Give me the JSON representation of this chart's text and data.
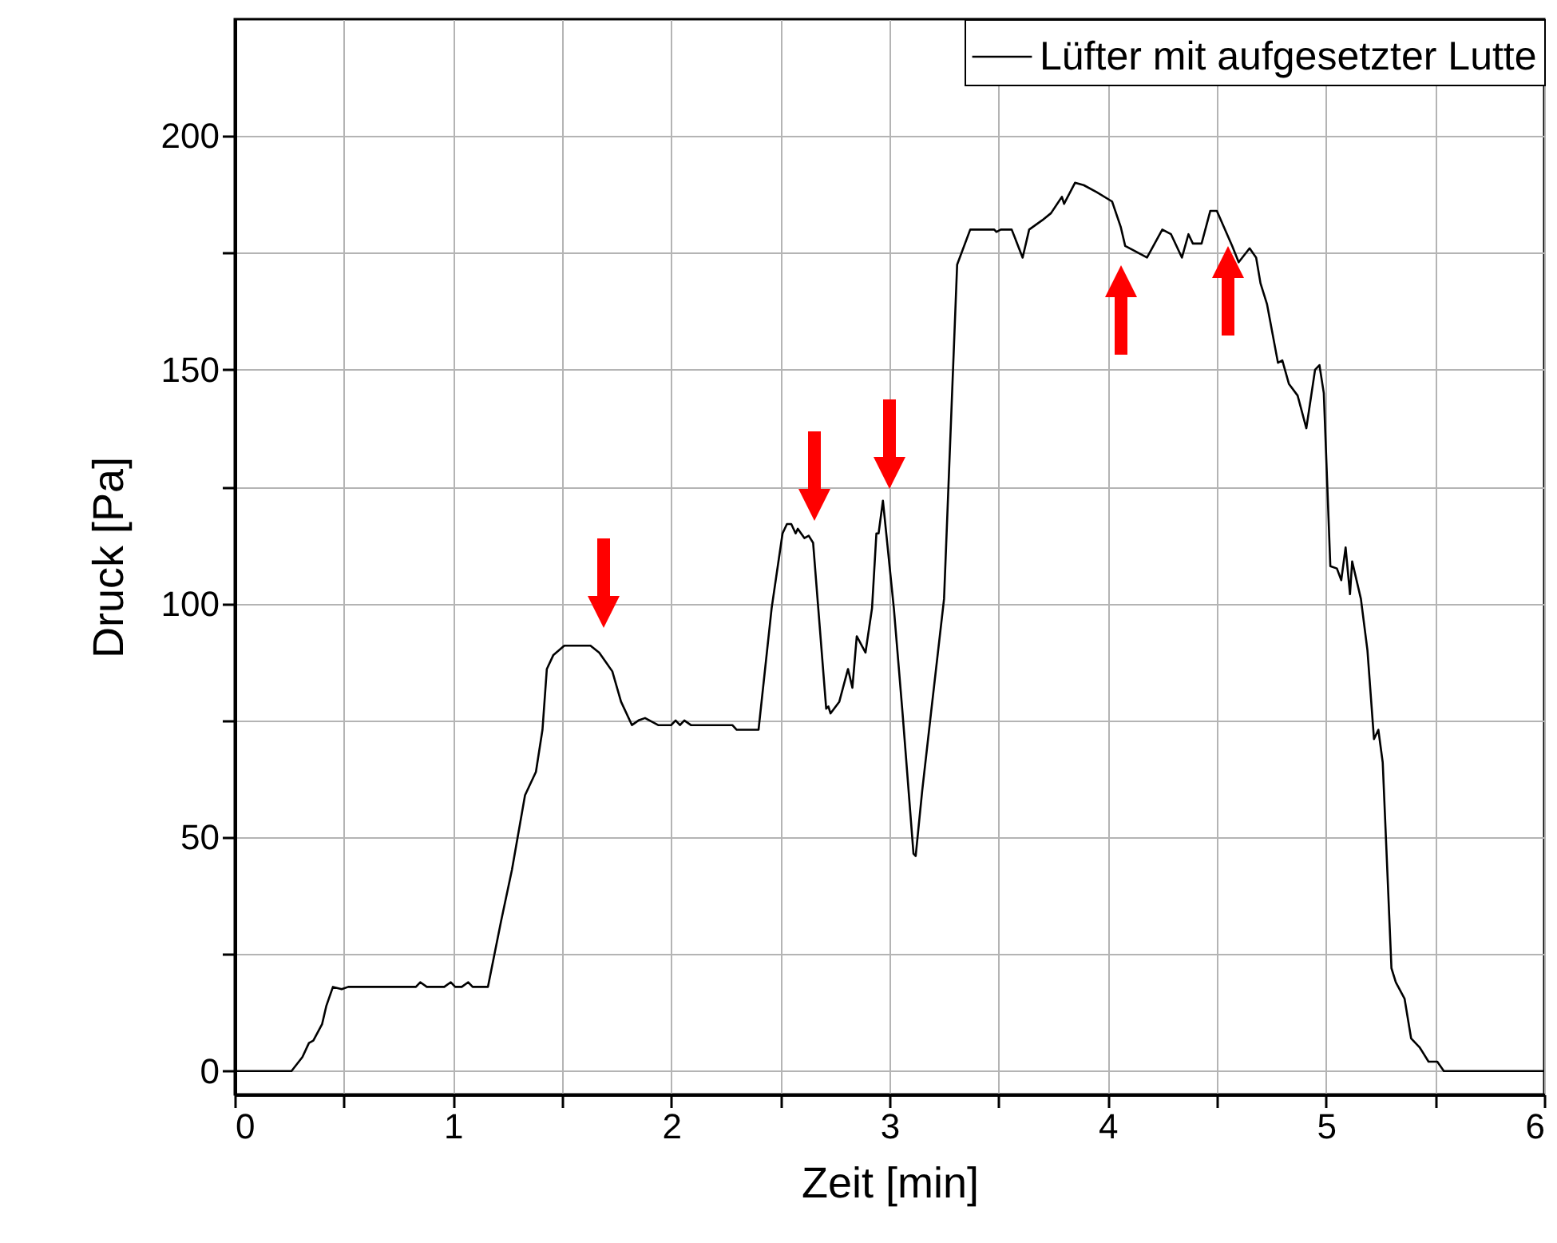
{
  "chart_data": {
    "type": "line",
    "xlabel": "Zeit [min]",
    "ylabel": "Druck [Pa]",
    "xlim": [
      0,
      6
    ],
    "ylim": [
      -5,
      225
    ],
    "xticks": [
      0,
      {
        "value": 0.5,
        "label": null
      },
      1,
      {
        "value": 1.5,
        "label": null
      },
      2,
      {
        "value": 2.5,
        "label": null
      },
      3,
      {
        "value": 3.5,
        "label": null
      },
      4,
      {
        "value": 4.5,
        "label": null
      },
      5,
      {
        "value": 5.5,
        "label": null
      },
      6
    ],
    "yticks": [
      0,
      {
        "value": 25,
        "label": null
      },
      50,
      {
        "value": 75,
        "label": null
      },
      100,
      {
        "value": 125,
        "label": null
      },
      150,
      {
        "value": 175,
        "label": null
      },
      200
    ],
    "grid": true,
    "legend": "top right",
    "line_style": "solid",
    "series": [
      {
        "name": "Lüfter mit aufgesetzter Lutte",
        "color": "#000000",
        "x": [
          0,
          0.26,
          0.31,
          0.34,
          0.36,
          0.4,
          0.42,
          0.45,
          0.49,
          0.52,
          0.83,
          0.85,
          0.88,
          0.96,
          0.99,
          1.01,
          1.04,
          1.07,
          1.09,
          1.16,
          1.22,
          1.27,
          1.33,
          1.38,
          1.41,
          1.43,
          1.46,
          1.51,
          1.63,
          1.67,
          1.73,
          1.77,
          1.82,
          1.85,
          1.88,
          1.94,
          2.0,
          2.02,
          2.04,
          2.06,
          2.09,
          2.28,
          2.3,
          2.4,
          2.46,
          2.51,
          2.53,
          2.55,
          2.57,
          2.58,
          2.61,
          2.63,
          2.65,
          2.71,
          2.72,
          2.73,
          2.77,
          2.81,
          2.83,
          2.85,
          2.89,
          2.92,
          2.94,
          2.95,
          2.97,
          3.02,
          3.06,
          3.11,
          3.12,
          3.15,
          3.19,
          3.25,
          3.31,
          3.37,
          3.48,
          3.49,
          3.51,
          3.56,
          3.61,
          3.64,
          3.7,
          3.74,
          3.79,
          3.8,
          3.85,
          3.89,
          3.95,
          4.02,
          4.06,
          4.08,
          4.12,
          4.18,
          4.25,
          4.29,
          4.34,
          4.37,
          4.39,
          4.43,
          4.47,
          4.5,
          4.57,
          4.6,
          4.65,
          4.68,
          4.7,
          4.73,
          4.78,
          4.8,
          4.83,
          4.87,
          4.91,
          4.95,
          4.97,
          4.99,
          5.02,
          5.05,
          5.07,
          5.09,
          5.11,
          5.12,
          5.16,
          5.19,
          5.22,
          5.24,
          5.26,
          5.3,
          5.32,
          5.36,
          5.39,
          5.43,
          5.47,
          5.51,
          5.54,
          6
        ],
        "values": [
          0,
          0,
          3,
          6,
          6.5,
          10,
          14,
          18,
          17.5,
          18,
          18,
          19,
          18,
          18,
          19,
          18,
          18,
          19,
          18,
          18,
          32,
          43,
          59,
          64,
          73,
          86,
          89,
          91,
          91,
          89.5,
          85.5,
          79,
          74,
          75,
          75.5,
          74,
          74,
          75,
          74,
          75,
          74,
          74,
          73,
          73,
          99,
          115,
          117,
          117,
          115,
          116,
          114,
          114.5,
          113,
          77.5,
          78,
          76.5,
          79,
          86,
          82,
          93,
          89.5,
          99,
          115,
          115,
          122,
          99,
          76.5,
          46.5,
          46,
          60,
          76.5,
          101,
          172.5,
          180,
          180,
          179.5,
          180,
          180,
          174,
          180,
          182,
          183.5,
          187,
          185.5,
          190,
          189.5,
          188,
          186,
          180.5,
          176.5,
          175.5,
          174,
          180,
          179,
          174,
          179,
          177,
          177,
          184,
          184,
          176.5,
          173,
          176,
          174,
          168.5,
          164,
          151.5,
          152,
          147,
          144.5,
          137.5,
          150,
          151,
          145,
          108,
          107.5,
          105,
          112,
          102,
          109,
          101,
          90,
          71,
          73,
          66,
          22,
          19,
          15.5,
          7,
          5,
          2,
          2,
          0,
          0
        ]
      }
    ]
  }
}
